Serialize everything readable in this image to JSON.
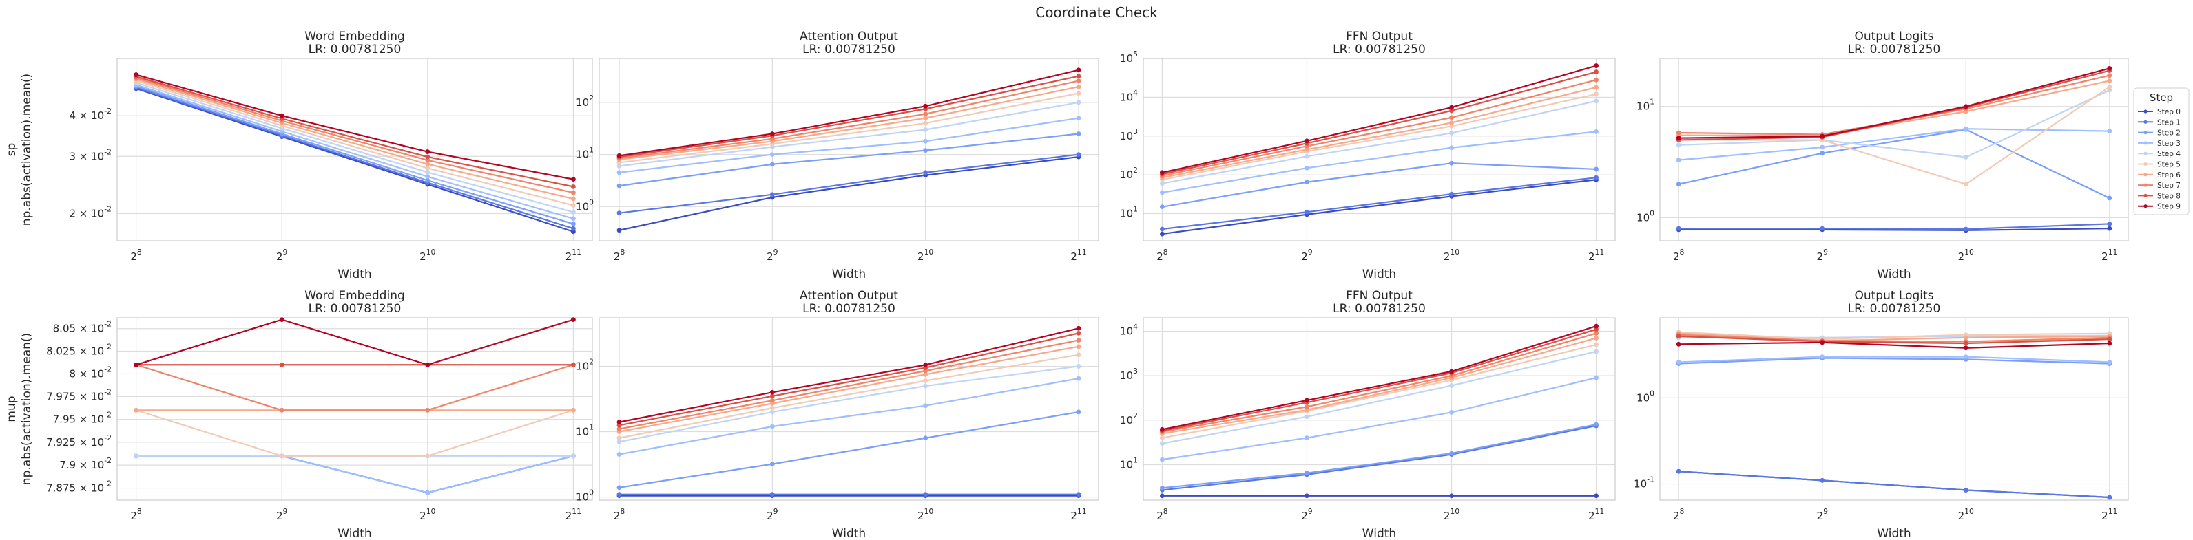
{
  "figure": {
    "suptitle": "Coordinate Check"
  },
  "legend": {
    "title": "Step"
  },
  "chart_data": [
    {
      "type": "line",
      "row": "sp",
      "title": "Word Embedding",
      "subtitle": "LR: 0.00781250",
      "xlabel": "Width",
      "ylabel": "sp\nnp.abs(activation).mean()",
      "x": [
        256,
        512,
        1024,
        2048
      ],
      "x_tick_labels": [
        "2^8",
        "2^9",
        "2^10",
        "2^11"
      ],
      "y_scale": "log",
      "ylim": [
        0.0165,
        0.06
      ],
      "y_ticks": [
        {
          "v": 0.02,
          "label": "2 × 10^-2"
        },
        {
          "v": 0.03,
          "label": "3 × 10^-2"
        },
        {
          "v": 0.04,
          "label": "4 × 10^-2"
        }
      ],
      "series": [
        {
          "name": "Step 0",
          "values": [
            0.0485,
            0.0345,
            0.0246,
            0.0176
          ]
        },
        {
          "name": "Step 1",
          "values": [
            0.0488,
            0.0348,
            0.0249,
            0.018
          ]
        },
        {
          "name": "Step 2",
          "values": [
            0.0493,
            0.0352,
            0.0253,
            0.0186
          ]
        },
        {
          "name": "Step 3",
          "values": [
            0.0498,
            0.0358,
            0.026,
            0.0193
          ]
        },
        {
          "name": "Step 4",
          "values": [
            0.0505,
            0.0366,
            0.0268,
            0.0202
          ]
        },
        {
          "name": "Step 5",
          "values": [
            0.0512,
            0.0373,
            0.0276,
            0.0212
          ]
        },
        {
          "name": "Step 6",
          "values": [
            0.0518,
            0.038,
            0.0284,
            0.0222
          ]
        },
        {
          "name": "Step 7",
          "values": [
            0.0523,
            0.0386,
            0.0292,
            0.0232
          ]
        },
        {
          "name": "Step 8",
          "values": [
            0.0528,
            0.0392,
            0.0299,
            0.0242
          ]
        },
        {
          "name": "Step 9",
          "values": [
            0.0535,
            0.04,
            0.031,
            0.0255
          ]
        }
      ]
    },
    {
      "type": "line",
      "row": "sp",
      "title": "Attention Output",
      "subtitle": "LR: 0.00781250",
      "xlabel": "Width",
      "ylabel": "",
      "x": [
        256,
        512,
        1024,
        2048
      ],
      "x_tick_labels": [
        "2^8",
        "2^9",
        "2^10",
        "2^11"
      ],
      "y_scale": "log",
      "ylim": [
        0.22,
        700
      ],
      "y_ticks": [
        {
          "v": 1,
          "label": "10^0"
        },
        {
          "v": 10,
          "label": "10^1"
        },
        {
          "v": 100,
          "label": "10^2"
        }
      ],
      "series": [
        {
          "name": "Step 0",
          "values": [
            0.35,
            1.5,
            4.0,
            9.0
          ]
        },
        {
          "name": "Step 1",
          "values": [
            0.75,
            1.7,
            4.5,
            10.0
          ]
        },
        {
          "name": "Step 2",
          "values": [
            2.5,
            6.5,
            12.0,
            25.0
          ]
        },
        {
          "name": "Step 3",
          "values": [
            4.5,
            10.0,
            18.0,
            50.0
          ]
        },
        {
          "name": "Step 4",
          "values": [
            6.0,
            14.0,
            30.0,
            100.0
          ]
        },
        {
          "name": "Step 5",
          "values": [
            7.0,
            16.0,
            40.0,
            150.0
          ]
        },
        {
          "name": "Step 6",
          "values": [
            8.0,
            18.0,
            50.0,
            200.0
          ]
        },
        {
          "name": "Step 7",
          "values": [
            8.5,
            20.0,
            60.0,
            260.0
          ]
        },
        {
          "name": "Step 8",
          "values": [
            9.0,
            23.0,
            75.0,
            320.0
          ]
        },
        {
          "name": "Step 9",
          "values": [
            9.5,
            25.0,
            85.0,
            420.0
          ]
        }
      ]
    },
    {
      "type": "line",
      "row": "sp",
      "title": "FFN Output",
      "subtitle": "LR: 0.00781250",
      "xlabel": "Width",
      "ylabel": "",
      "x": [
        256,
        512,
        1024,
        2048
      ],
      "x_tick_labels": [
        "2^8",
        "2^9",
        "2^10",
        "2^11"
      ],
      "y_scale": "log",
      "ylim": [
        2.0,
        100000
      ],
      "y_ticks": [
        {
          "v": 10,
          "label": "10^1"
        },
        {
          "v": 100,
          "label": "10^2"
        },
        {
          "v": 1000,
          "label": "10^3"
        },
        {
          "v": 10000,
          "label": "10^4"
        },
        {
          "v": 100000,
          "label": "10^5"
        }
      ],
      "series": [
        {
          "name": "Step 0",
          "values": [
            3.0,
            9.5,
            28.0,
            75.0
          ]
        },
        {
          "name": "Step 1",
          "values": [
            4.0,
            11.0,
            32.0,
            85.0
          ]
        },
        {
          "name": "Step 2",
          "values": [
            15.0,
            65.0,
            200.0,
            140.0
          ]
        },
        {
          "name": "Step 3",
          "values": [
            35.0,
            150.0,
            500.0,
            1300.0
          ]
        },
        {
          "name": "Step 4",
          "values": [
            60.0,
            300.0,
            1200.0,
            8000.0
          ]
        },
        {
          "name": "Step 5",
          "values": [
            75.0,
            400.0,
            1800.0,
            12000.0
          ]
        },
        {
          "name": "Step 6",
          "values": [
            85.0,
            450.0,
            2200.0,
            18000.0
          ]
        },
        {
          "name": "Step 7",
          "values": [
            95.0,
            550.0,
            3000.0,
            28000.0
          ]
        },
        {
          "name": "Step 8",
          "values": [
            105.0,
            650.0,
            4500.0,
            45000.0
          ]
        },
        {
          "name": "Step 9",
          "values": [
            115.0,
            750.0,
            5500.0,
            65000.0
          ]
        }
      ]
    },
    {
      "type": "line",
      "row": "sp",
      "title": "Output Logits",
      "subtitle": "LR: 0.00781250",
      "xlabel": "Width",
      "ylabel": "",
      "x": [
        256,
        512,
        1024,
        2048
      ],
      "x_tick_labels": [
        "2^8",
        "2^9",
        "2^10",
        "2^11"
      ],
      "y_scale": "log",
      "ylim": [
        0.62,
        27
      ],
      "y_ticks": [
        {
          "v": 1,
          "label": "10^0"
        },
        {
          "v": 10,
          "label": "10^1"
        }
      ],
      "series": [
        {
          "name": "Step 0",
          "values": [
            0.78,
            0.78,
            0.77,
            0.8
          ]
        },
        {
          "name": "Step 1",
          "values": [
            0.8,
            0.8,
            0.79,
            0.88
          ]
        },
        {
          "name": "Step 2",
          "values": [
            2.0,
            3.8,
            6.2,
            1.5
          ]
        },
        {
          "name": "Step 3",
          "values": [
            3.3,
            4.3,
            6.3,
            6.0
          ]
        },
        {
          "name": "Step 4",
          "values": [
            4.5,
            5.0,
            3.5,
            14.0
          ]
        },
        {
          "name": "Step 5",
          "values": [
            5.0,
            5.0,
            2.0,
            15.0
          ]
        },
        {
          "name": "Step 6",
          "values": [
            5.5,
            5.5,
            9.0,
            17.0
          ]
        },
        {
          "name": "Step 7",
          "values": [
            5.8,
            5.6,
            9.5,
            19.0
          ]
        },
        {
          "name": "Step 8",
          "values": [
            5.0,
            5.3,
            9.8,
            21.0
          ]
        },
        {
          "name": "Step 9",
          "values": [
            5.2,
            5.4,
            10.0,
            22.0
          ]
        }
      ]
    },
    {
      "type": "line",
      "row": "mup",
      "title": "Word Embedding",
      "subtitle": "LR: 0.00781250",
      "xlabel": "Width",
      "ylabel": "mup\nnp.abs(activation).mean()",
      "x": [
        256,
        512,
        1024,
        2048
      ],
      "x_tick_labels": [
        "2^8",
        "2^9",
        "2^10",
        "2^11"
      ],
      "y_scale": "log",
      "ylim": [
        0.07862,
        0.08062
      ],
      "y_ticks": [
        {
          "v": 0.07875,
          "label": "7.875 × 10^-2"
        },
        {
          "v": 0.079,
          "label": "7.9 × 10^-2"
        },
        {
          "v": 0.07925,
          "label": "7.925 × 10^-2"
        },
        {
          "v": 0.0795,
          "label": "7.95 × 10^-2"
        },
        {
          "v": 0.07975,
          "label": "7.975 × 10^-2"
        },
        {
          "v": 0.08,
          "label": "8 × 10^-2"
        },
        {
          "v": 0.08025,
          "label": "8.025 × 10^-2"
        },
        {
          "v": 0.0805,
          "label": "8.05 × 10^-2"
        }
      ],
      "series": [
        {
          "name": "Step 0",
          "values": [
            0.0791,
            0.0791,
            0.0787,
            0.0791
          ]
        },
        {
          "name": "Step 1",
          "values": [
            0.0791,
            0.0791,
            0.0787,
            0.0791
          ]
        },
        {
          "name": "Step 2",
          "values": [
            0.0791,
            0.0791,
            0.0787,
            0.0791
          ]
        },
        {
          "name": "Step 3",
          "values": [
            0.0791,
            0.0791,
            0.0787,
            0.0791
          ]
        },
        {
          "name": "Step 4",
          "values": [
            0.0791,
            0.0791,
            0.0791,
            0.0791
          ]
        },
        {
          "name": "Step 5",
          "values": [
            0.0796,
            0.0791,
            0.0791,
            0.0796
          ]
        },
        {
          "name": "Step 6",
          "values": [
            0.0796,
            0.0796,
            0.0796,
            0.0796
          ]
        },
        {
          "name": "Step 7",
          "values": [
            0.0801,
            0.0796,
            0.0796,
            0.0801
          ]
        },
        {
          "name": "Step 8",
          "values": [
            0.0801,
            0.0801,
            0.0801,
            0.0801
          ]
        },
        {
          "name": "Step 9",
          "values": [
            0.0801,
            0.0806,
            0.0801,
            0.0806
          ]
        }
      ]
    },
    {
      "type": "line",
      "row": "mup",
      "title": "Attention Output",
      "subtitle": "LR: 0.00781250",
      "xlabel": "Width",
      "ylabel": "",
      "x": [
        256,
        512,
        1024,
        2048
      ],
      "x_tick_labels": [
        "2^8",
        "2^9",
        "2^10",
        "2^11"
      ],
      "y_scale": "log",
      "ylim": [
        0.9,
        550
      ],
      "y_ticks": [
        {
          "v": 1,
          "label": "10^0"
        },
        {
          "v": 10,
          "label": "10^1"
        },
        {
          "v": 100,
          "label": "10^2"
        }
      ],
      "series": [
        {
          "name": "Step 0",
          "values": [
            1.05,
            1.05,
            1.05,
            1.05
          ]
        },
        {
          "name": "Step 1",
          "values": [
            1.1,
            1.1,
            1.1,
            1.1
          ]
        },
        {
          "name": "Step 2",
          "values": [
            1.4,
            3.2,
            8.0,
            20.0
          ]
        },
        {
          "name": "Step 3",
          "values": [
            4.5,
            12.0,
            25.0,
            65.0
          ]
        },
        {
          "name": "Step 4",
          "values": [
            7.0,
            20.0,
            50.0,
            100.0
          ]
        },
        {
          "name": "Step 5",
          "values": [
            8.0,
            23.0,
            60.0,
            150.0
          ]
        },
        {
          "name": "Step 6",
          "values": [
            10.0,
            27.0,
            75.0,
            200.0
          ]
        },
        {
          "name": "Step 7",
          "values": [
            11.0,
            30.0,
            85.0,
            250.0
          ]
        },
        {
          "name": "Step 8",
          "values": [
            12.5,
            35.0,
            95.0,
            320.0
          ]
        },
        {
          "name": "Step 9",
          "values": [
            14.0,
            40.0,
            105.0,
            380.0
          ]
        }
      ]
    },
    {
      "type": "line",
      "row": "mup",
      "title": "FFN Output",
      "subtitle": "LR: 0.00781250",
      "xlabel": "Width",
      "ylabel": "",
      "x": [
        256,
        512,
        1024,
        2048
      ],
      "x_tick_labels": [
        "2^8",
        "2^9",
        "2^10",
        "2^11"
      ],
      "y_scale": "log",
      "ylim": [
        1.6,
        20000
      ],
      "y_ticks": [
        {
          "v": 10,
          "label": "10^1"
        },
        {
          "v": 100,
          "label": "10^2"
        },
        {
          "v": 1000,
          "label": "10^3"
        },
        {
          "v": 10000,
          "label": "10^4"
        }
      ],
      "series": [
        {
          "name": "Step 0",
          "values": [
            2.0,
            2.0,
            2.0,
            2.0
          ]
        },
        {
          "name": "Step 1",
          "values": [
            2.7,
            6.0,
            17.0,
            75.0
          ]
        },
        {
          "name": "Step 2",
          "values": [
            3.0,
            6.5,
            18.0,
            80.0
          ]
        },
        {
          "name": "Step 3",
          "values": [
            13.0,
            40.0,
            150.0,
            900.0
          ]
        },
        {
          "name": "Step 4",
          "values": [
            30.0,
            120.0,
            600.0,
            3500.0
          ]
        },
        {
          "name": "Step 5",
          "values": [
            40.0,
            160.0,
            800.0,
            5000.0
          ]
        },
        {
          "name": "Step 6",
          "values": [
            50.0,
            170.0,
            900.0,
            7000.0
          ]
        },
        {
          "name": "Step 7",
          "values": [
            55.0,
            200.0,
            1000.0,
            9000.0
          ]
        },
        {
          "name": "Step 8",
          "values": [
            58.0,
            250.0,
            1150.0,
            11000.0
          ]
        },
        {
          "name": "Step 9",
          "values": [
            62.0,
            280.0,
            1250.0,
            13000.0
          ]
        }
      ]
    },
    {
      "type": "line",
      "row": "mup",
      "title": "Output Logits",
      "subtitle": "LR: 0.00781250",
      "xlabel": "Width",
      "ylabel": "",
      "x": [
        256,
        512,
        1024,
        2048
      ],
      "x_tick_labels": [
        "2^8",
        "2^9",
        "2^10",
        "2^11"
      ],
      "y_scale": "log",
      "ylim": [
        0.065,
        8.5
      ],
      "y_ticks": [
        {
          "v": 0.1,
          "label": "10^-1"
        },
        {
          "v": 1,
          "label": "10^0"
        }
      ],
      "series": [
        {
          "name": "Step 0",
          "values": [
            0.14,
            0.11,
            0.085,
            0.07
          ]
        },
        {
          "name": "Step 1",
          "values": [
            0.14,
            0.11,
            0.085,
            0.07
          ]
        },
        {
          "name": "Step 2",
          "values": [
            2.5,
            2.9,
            2.8,
            2.5
          ]
        },
        {
          "name": "Step 3",
          "values": [
            2.6,
            3.0,
            3.0,
            2.6
          ]
        },
        {
          "name": "Step 4",
          "values": [
            5.0,
            5.0,
            5.2,
            5.3
          ]
        },
        {
          "name": "Step 5",
          "values": [
            5.8,
            4.8,
            5.4,
            5.6
          ]
        },
        {
          "name": "Step 6",
          "values": [
            5.6,
            4.6,
            5.0,
            5.2
          ]
        },
        {
          "name": "Step 7",
          "values": [
            5.4,
            4.6,
            4.5,
            5.0
          ]
        },
        {
          "name": "Step 8",
          "values": [
            5.2,
            4.5,
            4.3,
            4.8
          ]
        },
        {
          "name": "Step 9",
          "values": [
            4.2,
            4.4,
            3.8,
            4.3
          ]
        }
      ]
    }
  ],
  "series_colors": [
    "#3b4cc0",
    "#5977e3",
    "#7b9ff9",
    "#9ebeff",
    "#c0d4f5",
    "#f2cbb7",
    "#f7a889",
    "#ee8468",
    "#d65244",
    "#b40426"
  ]
}
